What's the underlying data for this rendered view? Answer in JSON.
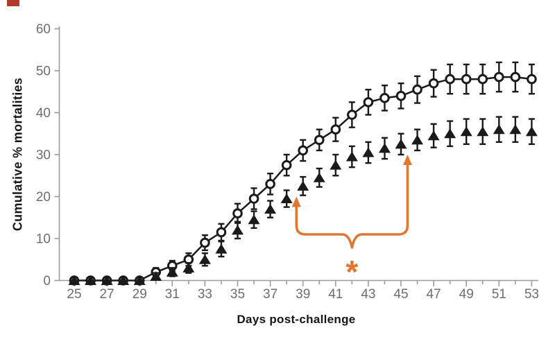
{
  "chart_data": {
    "type": "line",
    "title": "",
    "xlabel": "Days post-challenge",
    "ylabel": "Cumulative % mortalities",
    "xlim": [
      25,
      53
    ],
    "ylim": [
      0,
      60
    ],
    "yticks": [
      0,
      10,
      20,
      30,
      40,
      50,
      60
    ],
    "xticks_labeled": [
      25,
      27,
      29,
      31,
      33,
      35,
      37,
      39,
      41,
      43,
      45,
      47,
      49,
      51,
      53
    ],
    "xtick_minor_every": 1,
    "grid": false,
    "legend": "none",
    "x": [
      25,
      26,
      27,
      28,
      29,
      30,
      31,
      32,
      33,
      34,
      35,
      36,
      37,
      38,
      39,
      40,
      41,
      42,
      43,
      44,
      45,
      46,
      47,
      48,
      49,
      50,
      51,
      52,
      53
    ],
    "series": [
      {
        "name": "open-circle group",
        "marker": "open-circle",
        "connected": true,
        "values": [
          0,
          0,
          0,
          0,
          0,
          2,
          3.5,
          5,
          9,
          11.5,
          16,
          19.5,
          23,
          27.5,
          31,
          33.5,
          36,
          39.5,
          42.5,
          43.5,
          44,
          45.5,
          47,
          48,
          48,
          48,
          48.5,
          48.5,
          48
        ],
        "errors": [
          0,
          0,
          0,
          0,
          0,
          1,
          1.2,
          1.5,
          1.8,
          2,
          2.3,
          2.5,
          2.5,
          2.5,
          2.5,
          2.5,
          2.8,
          3,
          3,
          3,
          3,
          3.2,
          3.2,
          3.5,
          3.5,
          3.5,
          3.5,
          3.5,
          3.5
        ]
      },
      {
        "name": "filled-triangle group",
        "marker": "filled-triangle",
        "connected": false,
        "values": [
          0,
          0,
          0,
          0,
          0,
          1,
          2,
          3,
          5,
          7.5,
          12,
          14.5,
          17,
          19.5,
          22.5,
          24.5,
          27.5,
          29.5,
          30.5,
          31.5,
          32.5,
          33.5,
          34.5,
          35,
          35.5,
          35.5,
          36,
          36,
          35.5
        ],
        "errors": [
          0,
          0,
          0,
          0,
          0,
          0.8,
          1,
          1.2,
          1.5,
          1.8,
          2,
          2,
          2,
          2,
          2.2,
          2.2,
          2.5,
          2.5,
          2.5,
          2.5,
          2.5,
          2.5,
          2.8,
          3,
          3,
          3,
          3,
          3,
          3
        ]
      }
    ],
    "annotation": {
      "label": "*",
      "left_arrow": {
        "day": 38.6,
        "value": 20
      },
      "right_arrow": {
        "day": 45.4,
        "value": 30
      },
      "bar_value": 11
    }
  },
  "colors": {
    "series": "#1a1a1a",
    "axis": "#9b9b9b",
    "tick_label": "#6d6e71",
    "accent_orange": "#e0762f",
    "corner_mark": "#b0392e"
  }
}
